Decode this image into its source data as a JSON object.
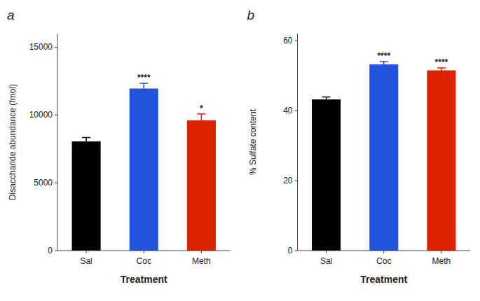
{
  "chart_data": [
    {
      "type": "bar",
      "title": "a",
      "categories": [
        "Sal",
        "Coc",
        "Meth"
      ],
      "values": [
        8050,
        11950,
        9600
      ],
      "errors": [
        280,
        380,
        480
      ],
      "colors": [
        "#000000",
        "#2255dd",
        "#dd2200"
      ],
      "annotations": [
        null,
        "****",
        "*"
      ],
      "xlabel": "Treatment",
      "ylabel": "Disaccharide abundance (fmol)",
      "ylim": [
        0,
        16000
      ],
      "yticks": [
        0,
        5000,
        10000,
        15000
      ],
      "grid": false
    },
    {
      "type": "bar",
      "title": "b",
      "categories": [
        "Sal",
        "Coc",
        "Meth"
      ],
      "values": [
        43.2,
        53.2,
        51.5
      ],
      "errors": [
        0.7,
        0.8,
        0.7
      ],
      "colors": [
        "#000000",
        "#2255dd",
        "#dd2200"
      ],
      "annotations": [
        null,
        "****",
        "****"
      ],
      "xlabel": "Treatment",
      "ylabel": "% Sulfate content",
      "ylim": [
        0,
        62
      ],
      "yticks": [
        0,
        20,
        40,
        60
      ],
      "grid": false
    }
  ]
}
